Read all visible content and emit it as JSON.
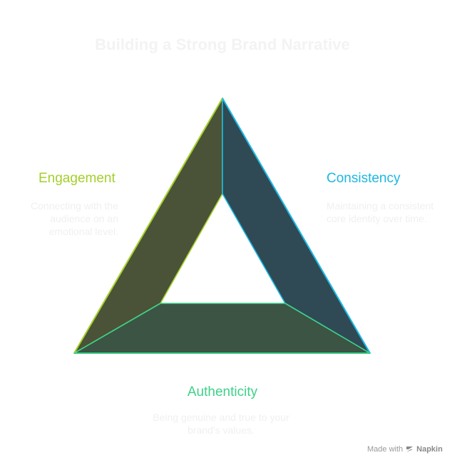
{
  "title": "Building a Strong Brand Narrative",
  "sections": {
    "engagement": {
      "label": "Engagement",
      "description": "Connecting with the audience on an emotional level.",
      "color": "#a4cf2a",
      "fill": "#4a5238"
    },
    "consistency": {
      "label": "Consistency",
      "description": "Maintaining a consistent core identity over time.",
      "color": "#1cb8e2",
      "fill": "#2f4a55"
    },
    "authenticity": {
      "label": "Authenticity",
      "description": "Being genuine and true to your brand's values.",
      "color": "#3ed188",
      "fill": "#3b5444"
    }
  },
  "footer": {
    "made_with": "Made with",
    "brand": "Napkin",
    "icon": "napkin-logo-icon"
  }
}
